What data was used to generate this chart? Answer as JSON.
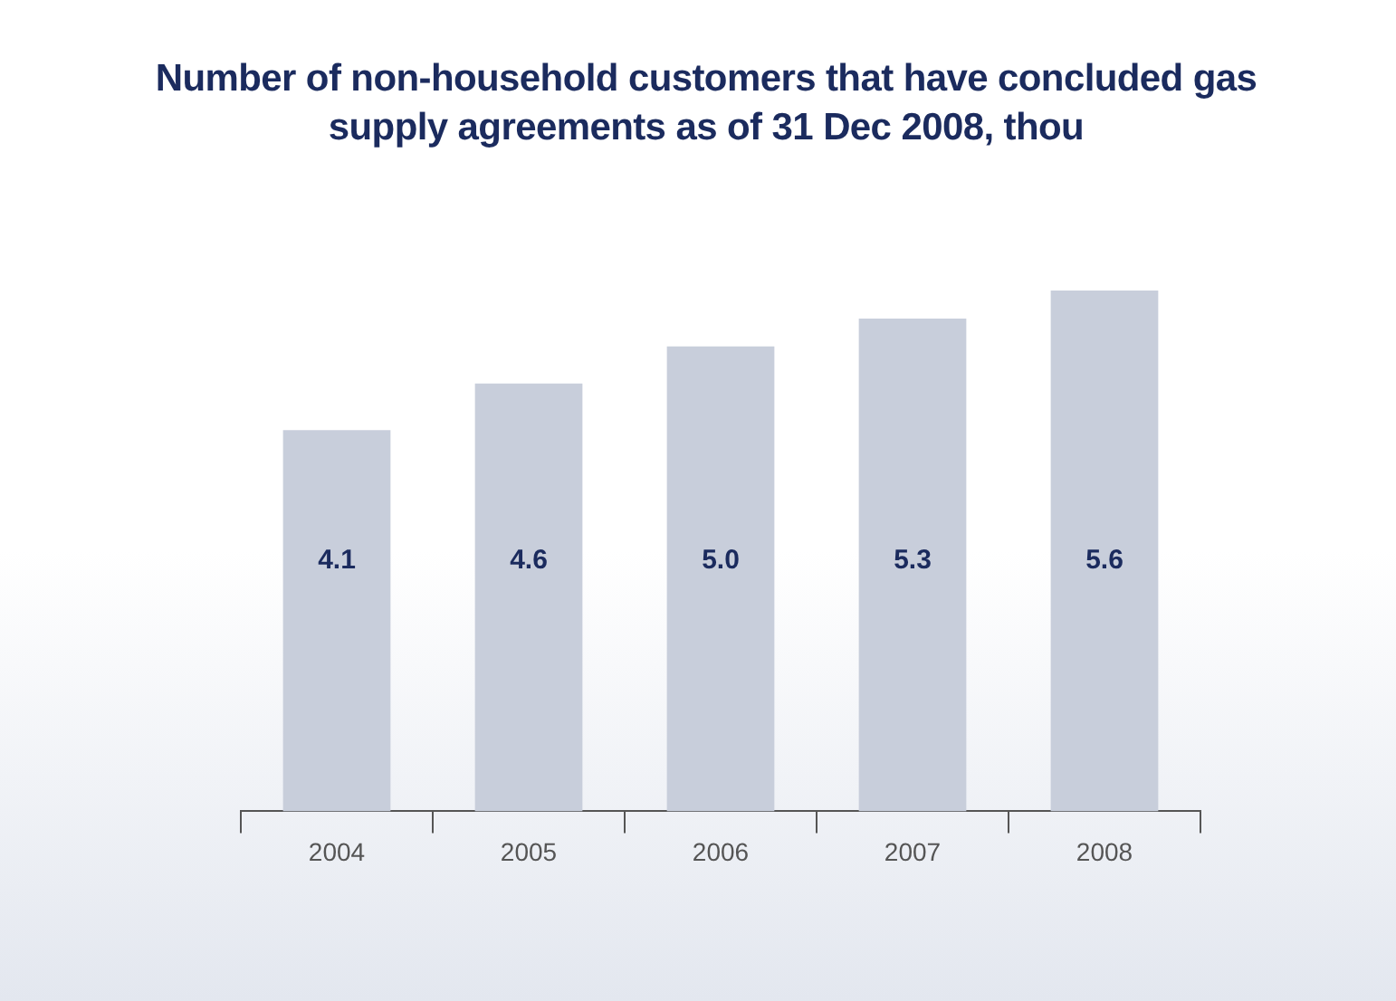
{
  "chart_data": {
    "type": "bar",
    "title": "Number of non-household customers that have concluded gas supply agreements as of 31 Dec 2008, thou",
    "categories": [
      "2004",
      "2005",
      "2006",
      "2007",
      "2008"
    ],
    "values": [
      4.1,
      4.6,
      5.0,
      5.3,
      5.6
    ],
    "value_labels": [
      "4.1",
      "4.6",
      "5.0",
      "5.3",
      "5.6"
    ],
    "color": "#c8cedb",
    "legend": false,
    "grid": false
  }
}
